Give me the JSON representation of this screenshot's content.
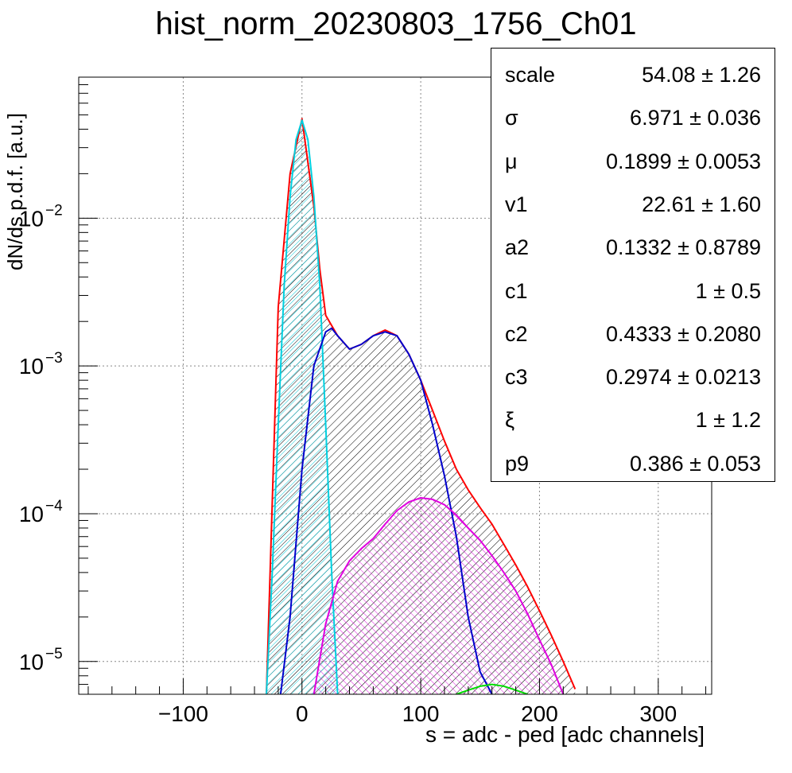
{
  "chart_data": {
    "type": "line",
    "title": "hist_norm_20230803_1756_Ch01",
    "xlabel": "s = adc - ped [adc channels]",
    "ylabel": "dN/ds p.d.f. [a.u.]",
    "xlim": [
      -188,
      345
    ],
    "ylim": [
      6e-06,
      0.09
    ],
    "y_scale": "log",
    "grid": true,
    "x_ticks": [
      -100,
      0,
      100,
      200,
      300
    ],
    "x_tick_labels": [
      "−100",
      "0",
      "100",
      "200",
      "300"
    ],
    "y_ticks": [
      1e-05,
      0.0001,
      0.001,
      0.01
    ],
    "y_tick_labels": [
      {
        "base": "10",
        "exp": "−5"
      },
      {
        "base": "10",
        "exp": "−4"
      },
      {
        "base": "10",
        "exp": "−3"
      },
      {
        "base": "10",
        "exp": "−2"
      }
    ],
    "series": [
      {
        "role": "total-fit",
        "color": "#ff0000",
        "x": [
          -30,
          -20,
          -10,
          0,
          10,
          15,
          20,
          30,
          40,
          50,
          60,
          70,
          80,
          90,
          100,
          110,
          120,
          130,
          140,
          150,
          160,
          170,
          180,
          190,
          200,
          210,
          220,
          230
        ],
        "y": [
          6e-06,
          0.0025,
          0.02,
          0.047,
          0.012,
          0.0045,
          0.0022,
          0.0016,
          0.0013,
          0.0014,
          0.0016,
          0.00175,
          0.0016,
          0.0012,
          0.0008,
          0.0005,
          0.00031,
          0.0002,
          0.000145,
          0.00011,
          8.5e-05,
          6.2e-05,
          4.5e-05,
          3.2e-05,
          2.2e-05,
          1.5e-05,
          1e-05,
          6.5e-06
        ]
      },
      {
        "role": "pedestal-component",
        "color": "#00d0e0",
        "x": [
          -30,
          -25,
          -20,
          -15,
          -10,
          -5,
          0,
          5,
          10,
          15,
          20,
          25,
          30
        ],
        "y": [
          6e-06,
          4e-05,
          0.0004,
          0.0035,
          0.014,
          0.034,
          0.046,
          0.034,
          0.014,
          0.0035,
          0.0004,
          4e-05,
          6e-06
        ]
      },
      {
        "role": "signal-component-1",
        "color": "#0000cc",
        "x": [
          -18,
          -10,
          0,
          10,
          20,
          25,
          30,
          40,
          50,
          60,
          70,
          80,
          90,
          100,
          110,
          120,
          130,
          140,
          150,
          160
        ],
        "y": [
          6e-06,
          2e-05,
          0.0002,
          0.001,
          0.0017,
          0.0018,
          0.0016,
          0.0013,
          0.0014,
          0.0016,
          0.0017,
          0.0016,
          0.0012,
          0.0008,
          0.0004,
          0.00018,
          7e-05,
          2e-05,
          8.5e-06,
          6e-06
        ]
      },
      {
        "role": "signal-component-2",
        "color": "#e000e0",
        "x": [
          10,
          20,
          30,
          40,
          50,
          60,
          70,
          80,
          90,
          100,
          110,
          120,
          130,
          140,
          150,
          160,
          170,
          180,
          190,
          200,
          210,
          220
        ],
        "y": [
          6e-06,
          1.8e-05,
          3.5e-05,
          4.8e-05,
          5.8e-05,
          6.8e-05,
          8.5e-05,
          0.000105,
          0.00012,
          0.000128,
          0.000125,
          0.000115,
          9.8e-05,
          8e-05,
          6.6e-05,
          5.2e-05,
          4e-05,
          3e-05,
          2.1e-05,
          1.4e-05,
          9.5e-06,
          6e-06
        ]
      },
      {
        "role": "signal-component-3",
        "color": "#00dd00",
        "x": [
          130,
          140,
          150,
          160,
          170,
          180,
          190
        ],
        "y": [
          6e-06,
          6.4e-06,
          6.8e-06,
          7e-06,
          6.8e-06,
          6.4e-06,
          6e-06
        ]
      }
    ],
    "fit_parameters": [
      {
        "name": "scale",
        "value": "54.08 ± 1.26"
      },
      {
        "name": "σ",
        "value": "6.971 ± 0.036"
      },
      {
        "name": "μ",
        "value": "0.1899 ± 0.0053"
      },
      {
        "name": "v1",
        "value": "22.61 ± 1.60"
      },
      {
        "name": "a2",
        "value": "0.1332 ± 0.8789"
      },
      {
        "name": "c1",
        "value": "1 ± 0.5"
      },
      {
        "name": "c2",
        "value": "0.4333 ± 0.2080"
      },
      {
        "name": "c3",
        "value": "0.2974 ± 0.0213"
      },
      {
        "name": "ξ",
        "value": "1 ± 1.2"
      },
      {
        "name": "p9",
        "value": "0.386 ± 0.053"
      }
    ]
  }
}
